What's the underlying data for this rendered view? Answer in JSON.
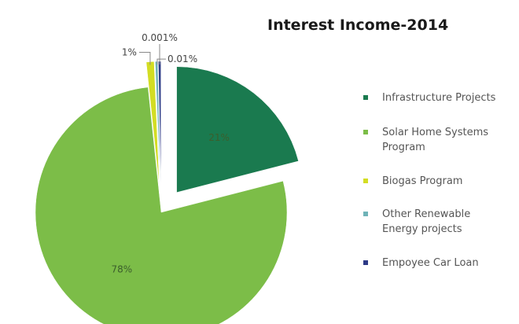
{
  "chart_data": {
    "type": "pie",
    "title": "Interest Income-2014",
    "slices": [
      {
        "name": "Infrastructure Projects",
        "value": 21,
        "label": "21%",
        "color": "#1a7a4f",
        "exploded": true
      },
      {
        "name": "Solar Home Systems Program",
        "value": 78,
        "label": "78%",
        "color": "#7cbd48",
        "exploded": false
      },
      {
        "name": "Biogas Program",
        "value": 1,
        "label": "1%",
        "color": "#d3dd23",
        "exploded": true
      },
      {
        "name": "Other Renewable Energy projects",
        "value": 0.01,
        "label": "0.01%",
        "color": "#6fb3b8",
        "exploded": true
      },
      {
        "name": "Empoyee Car Loan",
        "value": 0.001,
        "label": "0.001%",
        "color": "#2d3a86",
        "exploded": true
      }
    ],
    "legend": {
      "placement": "right",
      "entries": [
        {
          "text": [
            "Infrastructure Projects"
          ],
          "color": "#1a7a4f"
        },
        {
          "text": [
            "Solar Home Systems",
            "Program"
          ],
          "color": "#7cbd48"
        },
        {
          "text": [
            "Biogas Program"
          ],
          "color": "#d3dd23"
        },
        {
          "text": [
            "Other Renewable",
            "Energy projects"
          ],
          "color": "#6fb3b8"
        },
        {
          "text": [
            "Empoyee Car Loan"
          ],
          "color": "#2d3a86"
        }
      ]
    }
  }
}
